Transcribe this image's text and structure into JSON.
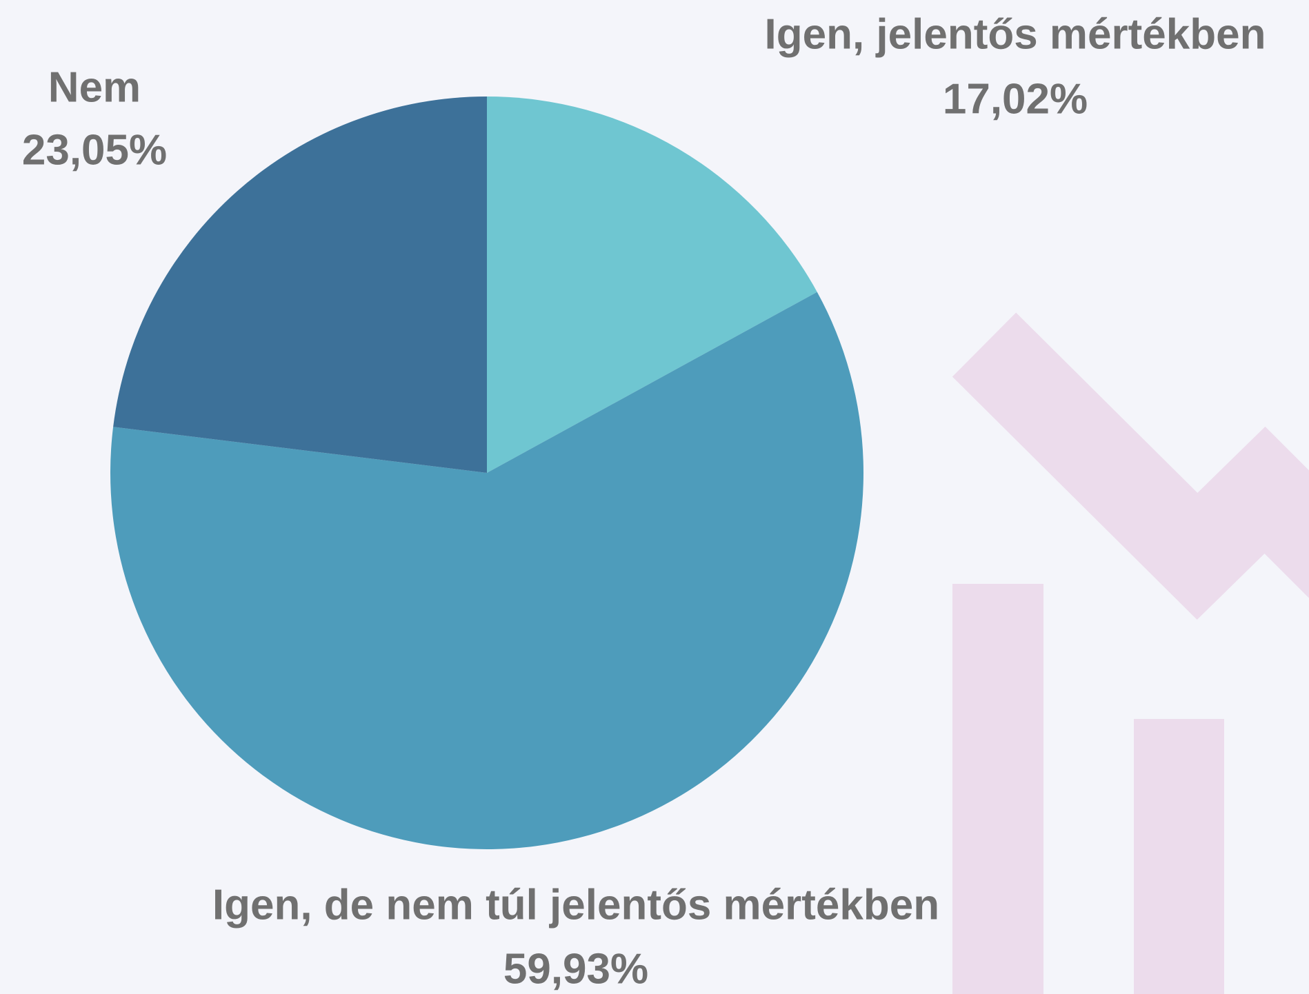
{
  "chart_data": {
    "type": "pie",
    "categories": [
      "Igen, jelentős mértékben",
      "Igen, de nem túl jelentős mértékben",
      "Nem"
    ],
    "values": [
      17.02,
      59.93,
      23.05
    ],
    "value_labels": [
      "17,02%",
      "59,93%",
      "23,05%"
    ],
    "colors": [
      "#6fc6d1",
      "#4e9cbb",
      "#3d7199"
    ]
  }
}
